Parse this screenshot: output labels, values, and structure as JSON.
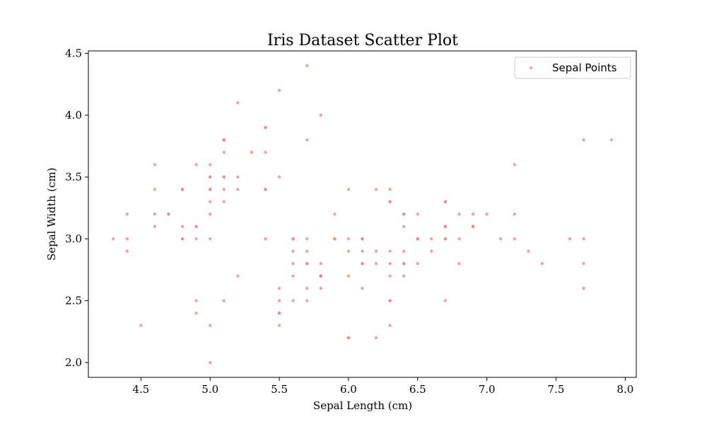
{
  "chart_data": {
    "type": "scatter",
    "title": "Iris Dataset Scatter Plot",
    "xlabel": "Sepal Length (cm)",
    "ylabel": "Sepal Width (cm)",
    "xlim": [
      4.12,
      8.08
    ],
    "ylim": [
      1.88,
      4.52
    ],
    "xticks": [
      4.5,
      5.0,
      5.5,
      6.0,
      6.5,
      7.0,
      7.5,
      8.0
    ],
    "xtick_labels": [
      "4.5",
      "5.0",
      "5.5",
      "6.0",
      "6.5",
      "7.0",
      "7.5",
      "8.0"
    ],
    "yticks": [
      2.0,
      2.5,
      3.0,
      3.5,
      4.0,
      4.5
    ],
    "ytick_labels": [
      "2.0",
      "2.5",
      "3.0",
      "3.5",
      "4.0",
      "4.5"
    ],
    "grid": false,
    "legend_position": "top-right",
    "series": [
      {
        "name": "Sepal Points",
        "color": "#f08080",
        "points": [
          [
            5.1,
            3.5
          ],
          [
            4.9,
            3.0
          ],
          [
            4.7,
            3.2
          ],
          [
            4.6,
            3.1
          ],
          [
            5.0,
            3.6
          ],
          [
            5.4,
            3.9
          ],
          [
            4.6,
            3.4
          ],
          [
            5.0,
            3.4
          ],
          [
            4.4,
            2.9
          ],
          [
            4.9,
            3.1
          ],
          [
            5.4,
            3.7
          ],
          [
            4.8,
            3.4
          ],
          [
            4.8,
            3.0
          ],
          [
            4.3,
            3.0
          ],
          [
            5.8,
            4.0
          ],
          [
            5.7,
            4.4
          ],
          [
            5.4,
            3.9
          ],
          [
            5.1,
            3.5
          ],
          [
            5.7,
            3.8
          ],
          [
            5.1,
            3.8
          ],
          [
            5.4,
            3.4
          ],
          [
            5.1,
            3.7
          ],
          [
            4.6,
            3.6
          ],
          [
            5.1,
            3.3
          ],
          [
            4.8,
            3.4
          ],
          [
            5.0,
            3.0
          ],
          [
            5.0,
            3.4
          ],
          [
            5.2,
            3.5
          ],
          [
            5.2,
            3.4
          ],
          [
            4.7,
            3.2
          ],
          [
            4.8,
            3.1
          ],
          [
            5.4,
            3.4
          ],
          [
            5.2,
            4.1
          ],
          [
            5.5,
            4.2
          ],
          [
            4.9,
            3.1
          ],
          [
            5.0,
            3.2
          ],
          [
            5.5,
            3.5
          ],
          [
            4.9,
            3.6
          ],
          [
            4.4,
            3.0
          ],
          [
            5.1,
            3.4
          ],
          [
            5.0,
            3.5
          ],
          [
            4.5,
            2.3
          ],
          [
            4.4,
            3.2
          ],
          [
            5.0,
            3.5
          ],
          [
            5.1,
            3.8
          ],
          [
            4.8,
            3.0
          ],
          [
            5.1,
            3.8
          ],
          [
            4.6,
            3.2
          ],
          [
            5.3,
            3.7
          ],
          [
            5.0,
            3.3
          ],
          [
            7.0,
            3.2
          ],
          [
            6.4,
            3.2
          ],
          [
            6.9,
            3.1
          ],
          [
            5.5,
            2.3
          ],
          [
            6.5,
            2.8
          ],
          [
            5.7,
            2.8
          ],
          [
            6.3,
            3.3
          ],
          [
            4.9,
            2.4
          ],
          [
            6.6,
            2.9
          ],
          [
            5.2,
            2.7
          ],
          [
            5.0,
            2.0
          ],
          [
            5.9,
            3.0
          ],
          [
            6.0,
            2.2
          ],
          [
            6.1,
            2.9
          ],
          [
            5.6,
            2.9
          ],
          [
            6.7,
            3.1
          ],
          [
            5.6,
            3.0
          ],
          [
            5.8,
            2.7
          ],
          [
            6.2,
            2.2
          ],
          [
            5.6,
            2.5
          ],
          [
            5.9,
            3.2
          ],
          [
            6.1,
            2.8
          ],
          [
            6.3,
            2.5
          ],
          [
            6.1,
            2.8
          ],
          [
            6.4,
            2.9
          ],
          [
            6.6,
            3.0
          ],
          [
            6.8,
            2.8
          ],
          [
            6.7,
            3.0
          ],
          [
            6.0,
            2.9
          ],
          [
            5.7,
            2.6
          ],
          [
            5.5,
            2.4
          ],
          [
            5.5,
            2.4
          ],
          [
            5.8,
            2.7
          ],
          [
            6.0,
            2.7
          ],
          [
            5.4,
            3.0
          ],
          [
            6.0,
            3.4
          ],
          [
            6.7,
            3.1
          ],
          [
            6.3,
            2.3
          ],
          [
            5.6,
            3.0
          ],
          [
            5.5,
            2.5
          ],
          [
            5.5,
            2.6
          ],
          [
            6.1,
            3.0
          ],
          [
            5.8,
            2.6
          ],
          [
            5.0,
            2.3
          ],
          [
            5.6,
            2.7
          ],
          [
            5.7,
            3.0
          ],
          [
            5.7,
            2.9
          ],
          [
            6.2,
            2.9
          ],
          [
            5.1,
            2.5
          ],
          [
            5.7,
            2.8
          ],
          [
            6.3,
            3.3
          ],
          [
            5.8,
            2.7
          ],
          [
            7.1,
            3.0
          ],
          [
            6.3,
            2.9
          ],
          [
            6.5,
            3.0
          ],
          [
            7.6,
            3.0
          ],
          [
            4.9,
            2.5
          ],
          [
            7.3,
            2.9
          ],
          [
            6.7,
            2.5
          ],
          [
            7.2,
            3.6
          ],
          [
            6.5,
            3.2
          ],
          [
            6.4,
            2.7
          ],
          [
            6.8,
            3.0
          ],
          [
            5.7,
            2.5
          ],
          [
            5.8,
            2.8
          ],
          [
            6.4,
            3.2
          ],
          [
            6.5,
            3.0
          ],
          [
            7.7,
            3.8
          ],
          [
            7.7,
            2.6
          ],
          [
            6.0,
            2.2
          ],
          [
            6.9,
            3.2
          ],
          [
            5.6,
            2.8
          ],
          [
            7.7,
            2.8
          ],
          [
            6.3,
            2.7
          ],
          [
            6.7,
            3.3
          ],
          [
            7.2,
            3.2
          ],
          [
            6.2,
            2.8
          ],
          [
            6.1,
            3.0
          ],
          [
            6.4,
            2.8
          ],
          [
            7.2,
            3.0
          ],
          [
            7.4,
            2.8
          ],
          [
            7.9,
            3.8
          ],
          [
            6.4,
            2.8
          ],
          [
            6.3,
            2.8
          ],
          [
            6.1,
            2.6
          ],
          [
            7.7,
            3.0
          ],
          [
            6.3,
            3.4
          ],
          [
            6.4,
            3.1
          ],
          [
            6.0,
            3.0
          ],
          [
            6.9,
            3.1
          ],
          [
            6.7,
            3.1
          ],
          [
            6.9,
            3.1
          ],
          [
            5.8,
            2.7
          ],
          [
            6.8,
            3.2
          ],
          [
            6.7,
            3.3
          ],
          [
            6.7,
            3.0
          ],
          [
            6.3,
            2.5
          ],
          [
            6.5,
            3.0
          ],
          [
            6.2,
            3.4
          ],
          [
            5.9,
            3.0
          ]
        ]
      }
    ]
  }
}
